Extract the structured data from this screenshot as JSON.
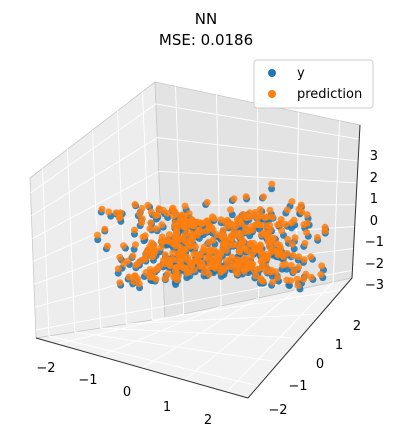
{
  "chart_data": {
    "type": "scatter",
    "projection": "3d",
    "title": "NN",
    "subtitle": "MSE: 0.0186",
    "xlim": [
      -2.5,
      2.5
    ],
    "ylim": [
      -2.5,
      2.5
    ],
    "zlim": [
      -3.2,
      3.6
    ],
    "x_ticks": [
      "−2",
      "−1",
      "0",
      "1",
      "2"
    ],
    "y_ticks": [
      "−2",
      "−1",
      "0",
      "1",
      "2"
    ],
    "z_ticks": [
      "−3",
      "−2",
      "−1",
      "0",
      "1",
      "2",
      "3"
    ],
    "legend_position": "top-right",
    "grid": true,
    "series": [
      {
        "name": "y",
        "color": "#1f77b4"
      },
      {
        "name": "prediction",
        "color": "#ff7f0e"
      }
    ]
  }
}
